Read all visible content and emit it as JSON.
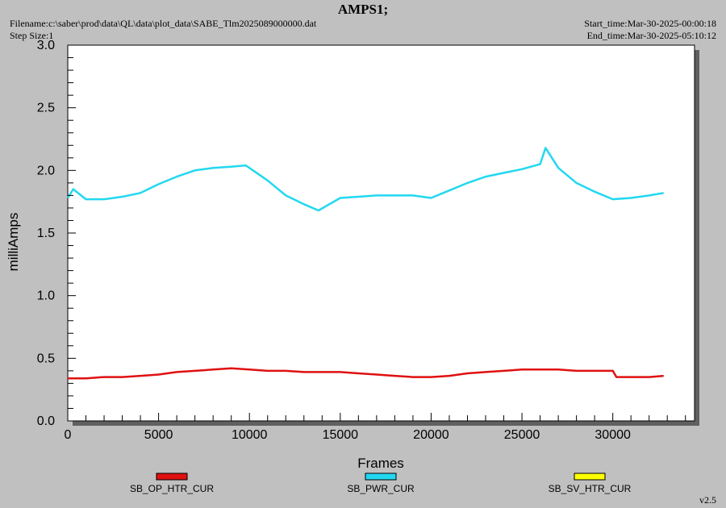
{
  "header": {
    "title": "AMPS1;",
    "filename": "Filename:c:\\saber\\prod\\data\\QL\\data\\plot_data\\SABE_Tlm2025089000000.dat",
    "step_size": "Step Size:1",
    "start_time": "Start_time:Mar-30-2025-00:00:18",
    "end_time": "End_time:Mar-30-2025-05:10:12",
    "version": "v2.5"
  },
  "chart_data": {
    "type": "line",
    "xlabel": "Frames",
    "ylabel": "milliAmps",
    "xlim": [
      0,
      34500
    ],
    "ylim": [
      0,
      3.0
    ],
    "x_ticks": [
      0,
      5000,
      10000,
      15000,
      20000,
      25000,
      30000
    ],
    "x_tick_labels": [
      "0",
      "5000",
      "10000",
      "15000",
      "20000",
      "25000",
      "30000"
    ],
    "y_ticks": [
      0,
      0.5,
      1.0,
      1.5,
      2.0,
      2.5,
      3.0
    ],
    "y_tick_labels": [
      "0.0",
      "0.5",
      "1.0",
      "1.5",
      "2.0",
      "2.5",
      "3.0"
    ],
    "grid": false,
    "legend_position": "bottom",
    "series": [
      {
        "name": "SB_OP_HTR_CUR",
        "color": "#e01010",
        "x": [
          0,
          1000,
          2000,
          3000,
          4000,
          5000,
          6000,
          7000,
          8000,
          9000,
          10000,
          11000,
          12000,
          13000,
          14000,
          15000,
          16000,
          17000,
          18000,
          19000,
          20000,
          21000,
          22000,
          23000,
          24000,
          25000,
          26000,
          27000,
          28000,
          29000,
          30000,
          30200,
          31000,
          32000,
          32800
        ],
        "values": [
          0.34,
          0.34,
          0.35,
          0.35,
          0.36,
          0.37,
          0.39,
          0.4,
          0.41,
          0.42,
          0.41,
          0.4,
          0.4,
          0.39,
          0.39,
          0.39,
          0.38,
          0.37,
          0.36,
          0.35,
          0.35,
          0.36,
          0.38,
          0.39,
          0.4,
          0.41,
          0.41,
          0.41,
          0.4,
          0.4,
          0.4,
          0.35,
          0.35,
          0.35,
          0.36
        ]
      },
      {
        "name": "SB_PWR_CUR",
        "color": "#22d8f0",
        "x": [
          0,
          300,
          1000,
          2000,
          3000,
          4000,
          5000,
          6000,
          7000,
          8000,
          9000,
          9800,
          11000,
          12000,
          13000,
          13800,
          15000,
          16000,
          17000,
          18000,
          19000,
          20000,
          21000,
          22000,
          23000,
          24000,
          25000,
          26000,
          26300,
          27000,
          28000,
          29000,
          30000,
          31000,
          32000,
          32800
        ],
        "values": [
          1.78,
          1.85,
          1.77,
          1.77,
          1.79,
          1.82,
          1.89,
          1.95,
          2.0,
          2.02,
          2.03,
          2.04,
          1.92,
          1.8,
          1.73,
          1.68,
          1.78,
          1.79,
          1.8,
          1.8,
          1.8,
          1.78,
          1.84,
          1.9,
          1.95,
          1.98,
          2.01,
          2.05,
          2.18,
          2.02,
          1.9,
          1.83,
          1.77,
          1.78,
          1.8,
          1.82
        ]
      },
      {
        "name": "SB_SV_HTR_CUR",
        "color": "#ffff00",
        "x": [],
        "values": []
      }
    ]
  }
}
